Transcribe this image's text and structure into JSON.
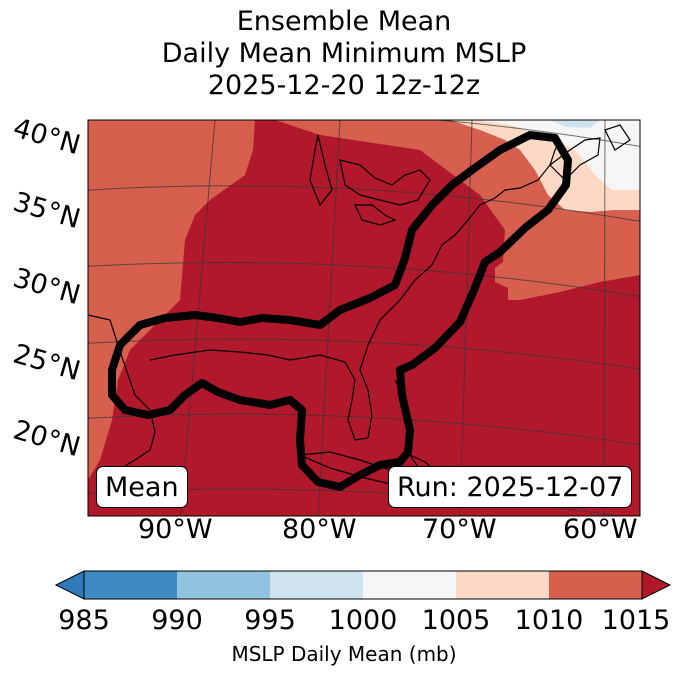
{
  "title": {
    "line1": "Ensemble Mean",
    "line2": "Daily Mean Minimum MSLP",
    "line3": "2025-12-20 12z-12z"
  },
  "map": {
    "lat_labels": [
      "40°N",
      "35°N",
      "30°N",
      "25°N",
      "20°N"
    ],
    "lon_labels": [
      "90°W",
      "80°W",
      "70°W",
      "60°W"
    ],
    "mean_box": "Mean",
    "run_box": "Run: 2025-12-07"
  },
  "colorbar": {
    "ticks": [
      "985",
      "990",
      "995",
      "1000",
      "1005",
      "1010",
      "1015"
    ],
    "label": "MSLP Daily Mean (mb)",
    "colors": [
      "#2f7ab8",
      "#3d8bc2",
      "#91c3de",
      "#cfe3ef",
      "#f6f6f6",
      "#fcd9c5",
      "#d6604d",
      "#b2182b"
    ]
  }
}
